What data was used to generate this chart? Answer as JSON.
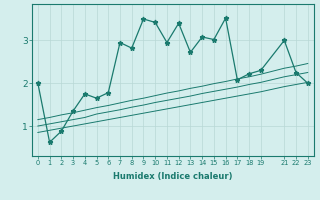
{
  "xlabel": "Humidex (Indice chaleur)",
  "ylabel": "",
  "background_color": "#d4eeed",
  "grid_color": "#b8d8d6",
  "line_color": "#1a7a6e",
  "x_data": [
    0,
    1,
    2,
    3,
    4,
    5,
    6,
    7,
    8,
    9,
    10,
    11,
    12,
    13,
    14,
    15,
    16,
    17,
    18,
    19,
    21,
    22,
    23
  ],
  "y_main": [
    2.0,
    0.62,
    0.88,
    1.35,
    1.75,
    1.65,
    1.78,
    2.95,
    2.82,
    3.5,
    3.42,
    2.95,
    3.4,
    2.72,
    3.08,
    3.02,
    3.52,
    2.08,
    2.22,
    2.3,
    3.0,
    2.25,
    2.0
  ],
  "y_line1": [
    0.85,
    0.9,
    0.95,
    1.0,
    1.05,
    1.1,
    1.15,
    1.2,
    1.25,
    1.3,
    1.35,
    1.4,
    1.45,
    1.5,
    1.55,
    1.6,
    1.65,
    1.7,
    1.75,
    1.8,
    1.92,
    1.97,
    2.02
  ],
  "y_line2": [
    1.0,
    1.05,
    1.1,
    1.15,
    1.2,
    1.28,
    1.33,
    1.38,
    1.44,
    1.49,
    1.55,
    1.6,
    1.65,
    1.7,
    1.76,
    1.81,
    1.86,
    1.91,
    1.97,
    2.02,
    2.15,
    2.2,
    2.25
  ],
  "y_line3": [
    1.15,
    1.2,
    1.26,
    1.31,
    1.37,
    1.43,
    1.48,
    1.54,
    1.6,
    1.65,
    1.71,
    1.77,
    1.82,
    1.88,
    1.93,
    1.99,
    2.04,
    2.1,
    2.15,
    2.21,
    2.35,
    2.4,
    2.46
  ],
  "yticks": [
    1,
    2,
    3
  ],
  "xticks": [
    0,
    1,
    2,
    3,
    4,
    5,
    6,
    7,
    8,
    9,
    10,
    11,
    12,
    13,
    14,
    15,
    16,
    17,
    18,
    19,
    21,
    22,
    23
  ],
  "ylim": [
    0.3,
    3.85
  ],
  "xlim": [
    -0.5,
    23.5
  ]
}
